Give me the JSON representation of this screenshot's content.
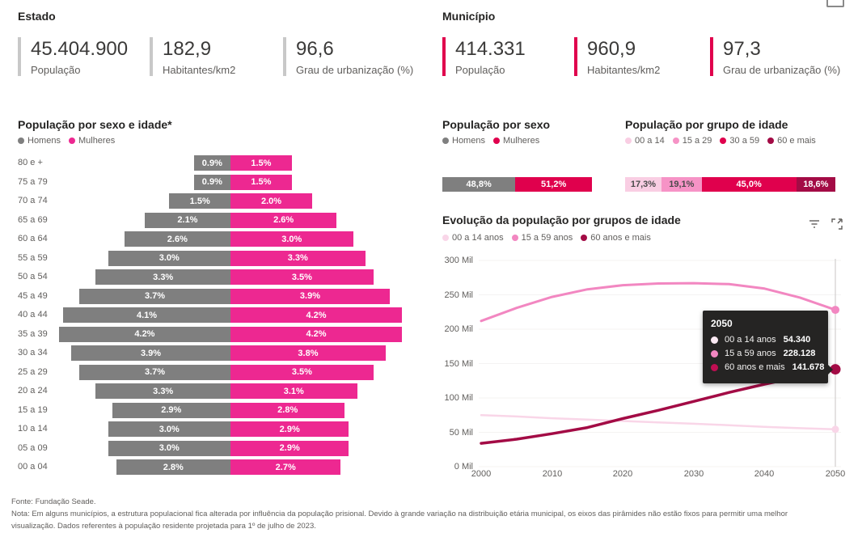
{
  "header": {
    "estado": {
      "title": "Estado",
      "stats": [
        {
          "value": "45.404.900",
          "label": "População"
        },
        {
          "value": "182,9",
          "label": "Habitantes/km2"
        },
        {
          "value": "96,6",
          "label": "Grau de urbanização (%)"
        }
      ]
    },
    "municipio": {
      "title": "Município",
      "stats": [
        {
          "value": "414.331",
          "label": "População"
        },
        {
          "value": "960,9",
          "label": "Habitantes/km2"
        },
        {
          "value": "97,3",
          "label": "Grau de urbanização (%)"
        }
      ]
    }
  },
  "colors": {
    "accent_estado": "#C8C8C8",
    "accent_municipio": "#E0004D",
    "men_gray": "#7F7F7F",
    "women_pink": "#ED2891",
    "crimson": "#E0004D",
    "dark_red": "#A30B45",
    "light_pink": "#F9CEE3",
    "mid_pink": "#F693C6",
    "tooltip_bg": "#252423"
  },
  "icons": {
    "evolution_header": [
      "filter-icon",
      "focus-mode-icon"
    ],
    "top_right": "visual-header-icon-partial"
  },
  "chart_data": [
    {
      "id": "pyramid",
      "type": "bar",
      "subtype": "population-pyramid",
      "title": "População por sexo e idade*",
      "unit": "%",
      "legend": [
        {
          "label": "Homens",
          "color": "#7F7F7F"
        },
        {
          "label": "Mulheres",
          "color": "#ED2891"
        }
      ],
      "categories": [
        "80 e +",
        "75 a 79",
        "70 a 74",
        "65 a 69",
        "60 a 64",
        "55 a 59",
        "50 a 54",
        "45 a 49",
        "40 a 44",
        "35 a 39",
        "30 a 34",
        "25 a 29",
        "20 a 24",
        "15 a 19",
        "10 a 14",
        "05 a 09",
        "00 a 04"
      ],
      "series": [
        {
          "name": "Homens",
          "color": "#7F7F7F",
          "values": [
            0.9,
            0.9,
            1.5,
            2.1,
            2.6,
            3.0,
            3.3,
            3.7,
            4.1,
            4.2,
            3.9,
            3.7,
            3.3,
            2.9,
            3.0,
            3.0,
            2.8
          ],
          "display": [
            "0.9%",
            "0.9%",
            "1.5%",
            "2.1%",
            "2.6%",
            "3.0%",
            "3.3%",
            "3.7%",
            "4.1%",
            "4.2%",
            "3.9%",
            "3.7%",
            "3.3%",
            "2.9%",
            "3.0%",
            "3.0%",
            "2.8%"
          ]
        },
        {
          "name": "Mulheres",
          "color": "#ED2891",
          "values": [
            1.5,
            1.5,
            2.0,
            2.6,
            3.0,
            3.3,
            3.5,
            3.9,
            4.2,
            4.2,
            3.8,
            3.5,
            3.1,
            2.8,
            2.9,
            2.9,
            2.7
          ],
          "display": [
            "1.5%",
            "1.5%",
            "2.0%",
            "2.6%",
            "3.0%",
            "3.3%",
            "3.5%",
            "3.9%",
            "4.2%",
            "4.2%",
            "3.8%",
            "3.5%",
            "3.1%",
            "2.8%",
            "2.9%",
            "2.9%",
            "2.7%"
          ]
        }
      ]
    },
    {
      "id": "sexo",
      "type": "bar",
      "subtype": "stacked-100",
      "title": "População por sexo",
      "legend": [
        {
          "label": "Homens",
          "color": "#7F7F7F"
        },
        {
          "label": "Mulheres",
          "color": "#E0004D"
        }
      ],
      "segments": [
        {
          "label": "Homens",
          "value": 48.8,
          "display": "48,8%",
          "color": "#7F7F7F",
          "text_color": "#ffffff"
        },
        {
          "label": "Mulheres",
          "value": 51.2,
          "display": "51,2%",
          "color": "#E0004D",
          "text_color": "#ffffff"
        }
      ]
    },
    {
      "id": "grupo_idade",
      "type": "bar",
      "subtype": "stacked-100",
      "title": "População por grupo de idade",
      "legend": [
        {
          "label": "00 a 14",
          "color": "#F9CEE3"
        },
        {
          "label": "15 a 29",
          "color": "#F693C6"
        },
        {
          "label": "30 a 59",
          "color": "#E0004D"
        },
        {
          "label": "60 e mais",
          "color": "#A30B45"
        }
      ],
      "segments": [
        {
          "label": "00 a 14",
          "value": 17.3,
          "display": "17,3%",
          "color": "#F9CEE3",
          "text_color": "#4a4a4a"
        },
        {
          "label": "15 a 29",
          "value": 19.1,
          "display": "19,1%",
          "color": "#F693C6",
          "text_color": "#4a4a4a"
        },
        {
          "label": "30 a 59",
          "value": 45.0,
          "display": "45,0%",
          "color": "#E0004D",
          "text_color": "#ffffff"
        },
        {
          "label": "60 e mais",
          "value": 18.6,
          "display": "18,6%",
          "color": "#A30B45",
          "text_color": "#ffffff"
        }
      ]
    },
    {
      "id": "evolucao",
      "type": "line",
      "title": "Evolução da população por grupos de idade",
      "x": [
        2000,
        2005,
        2010,
        2015,
        2020,
        2025,
        2030,
        2035,
        2040,
        2045,
        2050
      ],
      "xlabel": "",
      "ylabel": "",
      "ylim": [
        0,
        300
      ],
      "grid": true,
      "legend_position": "top",
      "y_ticks": [
        {
          "label": "0 Mil",
          "value": 0
        },
        {
          "label": "50 Mil",
          "value": 50
        },
        {
          "label": "100 Mil",
          "value": 100
        },
        {
          "label": "150 Mil",
          "value": 150
        },
        {
          "label": "200 Mil",
          "value": 200
        },
        {
          "label": "250 Mil",
          "value": 250
        },
        {
          "label": "300 Mil",
          "value": 300
        }
      ],
      "x_ticks": [
        {
          "label": "2000",
          "value": 2000
        },
        {
          "label": "2010",
          "value": 2010
        },
        {
          "label": "2020",
          "value": 2020
        },
        {
          "label": "2030",
          "value": 2030
        },
        {
          "label": "2040",
          "value": 2040
        },
        {
          "label": "2050",
          "value": 2050
        }
      ],
      "series": [
        {
          "name": "00 a 14 anos",
          "color": "#F9D6E8",
          "dot_color": "#F9D6E8",
          "dot_r": 4.5,
          "stroke_w": 2.5,
          "values": [
            75,
            73,
            70.5,
            68.5,
            66.5,
            64.5,
            62.5,
            60.3,
            58,
            56,
            54.34
          ]
        },
        {
          "name": "15 a 59 anos",
          "color": "#F287C1",
          "dot_color": "#F287C1",
          "dot_r": 5,
          "stroke_w": 3,
          "values": [
            212,
            231,
            247,
            258,
            264,
            266.5,
            267,
            265.5,
            259,
            246,
            228.128
          ]
        },
        {
          "name": "60 anos e mais",
          "color": "#A30B45",
          "dot_color": "#A30B45",
          "dot_r": 6.5,
          "stroke_w": 3.5,
          "values": [
            34,
            40,
            48,
            57,
            70,
            82,
            95,
            108,
            120,
            131,
            141.678
          ]
        }
      ],
      "hover_year": 2050,
      "tooltip": {
        "year": "2050",
        "rows": [
          {
            "label": "00 a 14 anos",
            "value": "54.340",
            "dot_color": "#FBE9F3"
          },
          {
            "label": "15 a 59 anos",
            "value": "228.128",
            "dot_color": "#F287C1"
          },
          {
            "label": "60 anos e mais",
            "value": "141.678",
            "dot_color": "#C00E52"
          }
        ]
      }
    }
  ],
  "footer": {
    "lines": [
      "Fonte: Fundação Seade.",
      "Nota: Em alguns municípios, a estrutura populacional fica alterada por influência da população prisional. Devido à grande variação na distribuição etária municipal, os eixos das pirâmides não estão fixos para permitir uma melhor",
      "visualização. Dados referentes à população residente projetada para 1º de julho de 2023."
    ]
  }
}
